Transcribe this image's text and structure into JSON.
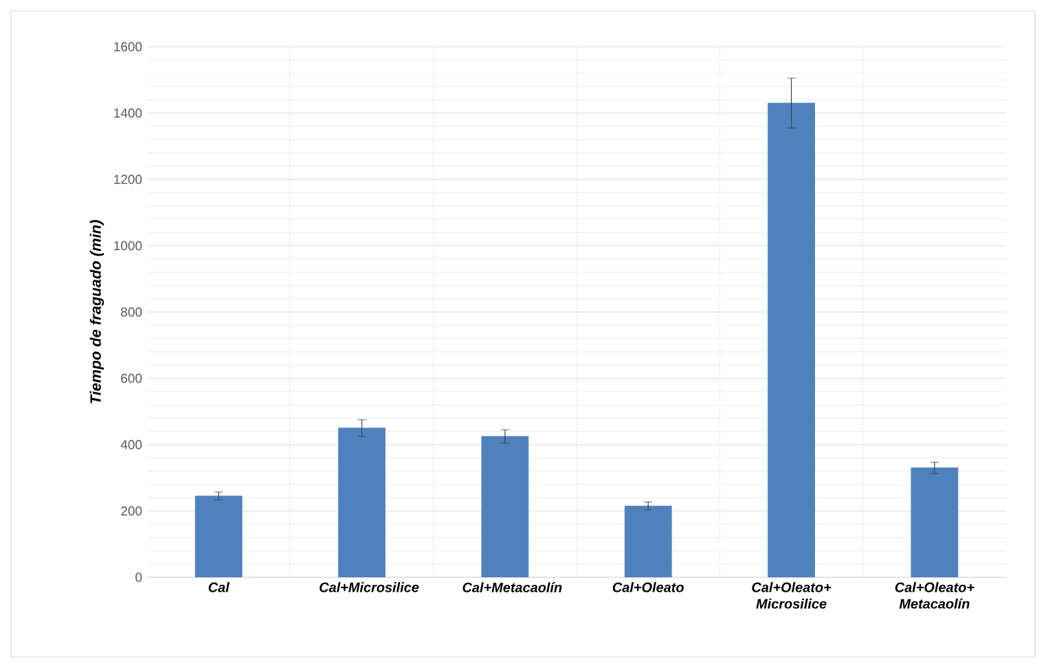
{
  "chart_data": {
    "type": "bar",
    "ylabel": "Tiempo de fraguado (min)",
    "categories": [
      "Cal",
      "Cal+Microsilice",
      "Cal+Metacaolín",
      "Cal+Oleato",
      "Cal+Oleato+ Microsilice",
      "Cal+Oleato+ Metacaolín"
    ],
    "values": [
      245,
      450,
      425,
      215,
      1430,
      330
    ],
    "errors": [
      12,
      25,
      20,
      12,
      75,
      17
    ],
    "color": "#4f81bd",
    "ylim": [
      0,
      1600
    ],
    "yticks": [
      0,
      200,
      400,
      600,
      800,
      1000,
      1200,
      1400,
      1600
    ],
    "grid": true
  }
}
